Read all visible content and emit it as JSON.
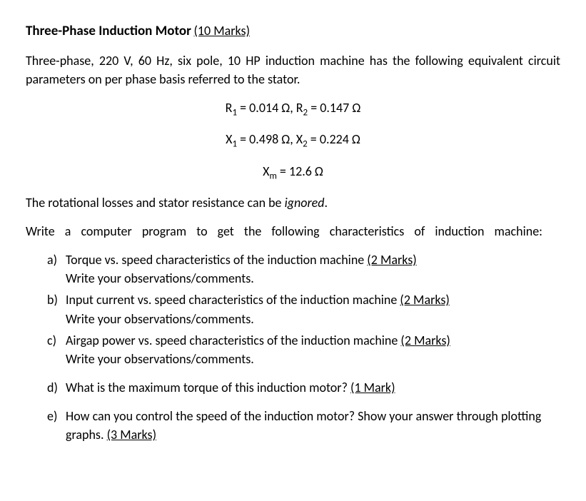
{
  "title": {
    "main": "Three-Phase Induction Motor",
    "marks": "(10 Marks)"
  },
  "intro": "Three-phase, 220 V, 60 Hz, six pole, 10 HP induction machine has the following equivalent circuit parameters on per phase basis referred to the stator.",
  "equations": {
    "line1_a": "R",
    "line1_a_sub": "1",
    "line1_a_val": " = 0.014 Ω,  R",
    "line1_b_sub": "2",
    "line1_b_val": " = 0.147 Ω",
    "line2_a": "X",
    "line2_a_sub": "1",
    "line2_a_val": " = 0.498 Ω, X",
    "line2_b_sub": "2",
    "line2_b_val": " = 0.224 Ω",
    "line3_a": "X",
    "line3_a_sub": "m",
    "line3_a_val": " = 12.6 Ω"
  },
  "note_pre": "The rotational losses and stator resistance can be ",
  "note_italic": "ignored",
  "note_post": ".",
  "instruction": "Write a computer program to get the following characteristics of induction machine:",
  "items": {
    "a": {
      "marker": "a)",
      "text": "Torque vs. speed characteristics of the induction machine ",
      "marks": "(2 Marks)",
      "sub": "Write your observations/comments."
    },
    "b": {
      "marker": "b)",
      "text": "Input current vs. speed characteristics of the induction machine ",
      "marks": "(2 Marks)",
      "sub": "Write your observations/comments."
    },
    "c": {
      "marker": "c)",
      "text": "Airgap power vs. speed characteristics of the induction machine ",
      "marks": "(2 Marks)",
      "sub": "Write your observations/comments."
    },
    "d": {
      "marker": "d)",
      "text": "What is the maximum torque of this induction motor? ",
      "marks": "(1 Mark)"
    },
    "e": {
      "marker": "e)",
      "text": "How can you control the speed of the induction motor? Show your answer through plotting graphs. ",
      "marks": "(3 Marks)"
    }
  }
}
